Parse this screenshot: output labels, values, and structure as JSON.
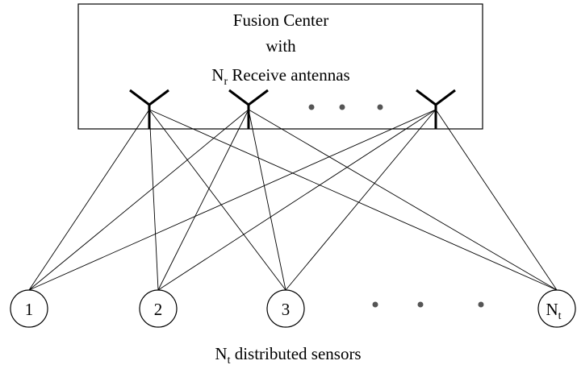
{
  "fusion_center": {
    "lines": [
      "Fusion Center",
      "with"
    ],
    "antenna_label": {
      "main": "N",
      "sub": "r",
      "rest": " Receive antennas"
    }
  },
  "sensors": [
    {
      "main": "1"
    },
    {
      "main": "2"
    },
    {
      "main": "3"
    },
    {
      "main": "N",
      "sub": "t"
    }
  ],
  "caption": {
    "main": "N",
    "sub": "t",
    "rest": " distributed sensors"
  }
}
